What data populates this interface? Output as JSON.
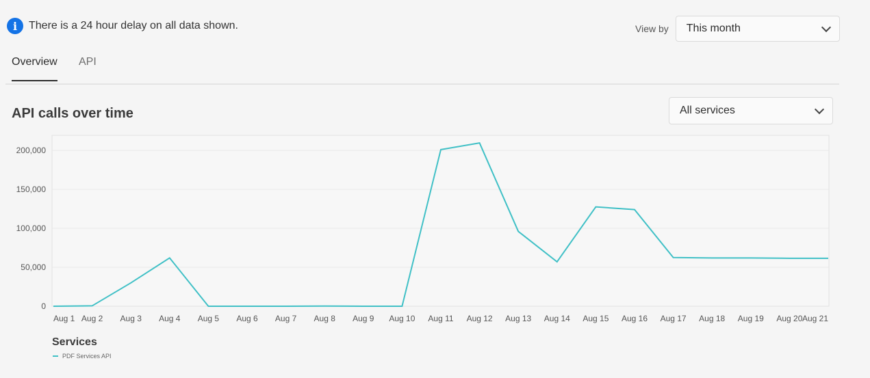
{
  "notice": {
    "icon": "info-icon",
    "text": "There is a 24 hour delay on all data shown."
  },
  "view_by": {
    "label": "View by",
    "selected": "This month"
  },
  "tabs": [
    {
      "label": "Overview",
      "active": true
    },
    {
      "label": "API",
      "active": false
    }
  ],
  "section": {
    "title": "API calls over time",
    "filter_selected": "All services"
  },
  "colors": {
    "series": "#40c0c6",
    "accent": "#1473e6"
  },
  "chart_data": {
    "type": "line",
    "title": "",
    "xlabel": "",
    "ylabel": "",
    "categories": [
      "Aug 1",
      "Aug 2",
      "Aug 3",
      "Aug 4",
      "Aug 5",
      "Aug 6",
      "Aug 7",
      "Aug 8",
      "Aug 9",
      "Aug 10",
      "Aug 11",
      "Aug 12",
      "Aug 13",
      "Aug 14",
      "Aug 15",
      "Aug 16",
      "Aug 17",
      "Aug 18",
      "Aug 19",
      "Aug 20",
      "Aug 21"
    ],
    "yticks": [
      0,
      50000,
      100000,
      150000,
      200000
    ],
    "ytick_labels": [
      "0",
      "50,000",
      "100,000",
      "150,000",
      "200,000"
    ],
    "ylim": [
      0,
      220000
    ],
    "grid": true,
    "series": [
      {
        "name": "PDF Services API",
        "values": [
          0,
          500,
          30000,
          62000,
          0,
          0,
          0,
          200,
          0,
          0,
          201000,
          209500,
          96000,
          57000,
          127500,
          124000,
          62500,
          62000,
          62000,
          61500,
          61500
        ]
      }
    ],
    "legend": {
      "title": "Services",
      "placement": "bottom-left"
    }
  }
}
